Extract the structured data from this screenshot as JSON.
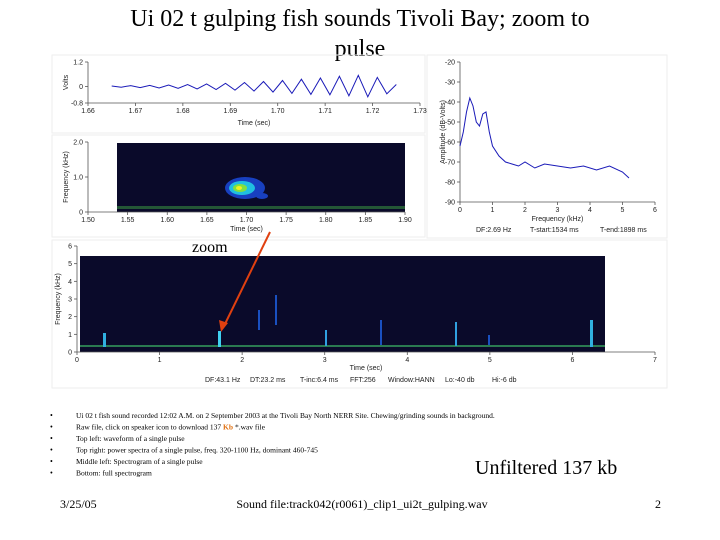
{
  "title": "Ui 02 t gulping fish sounds Tivoli Bay; zoom to pulse",
  "chart_data": [
    {
      "type": "line",
      "color": "#1a1ab8",
      "ylabel": "Volts",
      "xlabel": "Time (sec)",
      "xlim": [
        1.66,
        1.73
      ],
      "ylim": [
        -0.8,
        1.2
      ],
      "xticks": [
        1.66,
        1.67,
        1.68,
        1.69,
        {
          "value": 1.7,
          "label": "1.70"
        },
        1.71,
        1.72,
        1.73
      ],
      "yticks": [
        -0.8,
        0,
        1.2
      ],
      "x": [
        1.665,
        1.667,
        1.669,
        1.671,
        1.673,
        1.675,
        1.677,
        1.679,
        1.681,
        1.683,
        1.685,
        1.687,
        1.689,
        1.691,
        1.693,
        1.695,
        1.697,
        1.699,
        1.701,
        1.703,
        1.705,
        1.707,
        1.709,
        1.711,
        1.713,
        1.715,
        1.717,
        1.719,
        1.721,
        1.723,
        1.725
      ],
      "values": [
        0.03,
        -0.03,
        0.05,
        -0.05,
        0.06,
        -0.07,
        0.08,
        -0.09,
        0.1,
        -0.11,
        0.13,
        -0.14,
        0.16,
        -0.17,
        0.2,
        -0.22,
        0.25,
        -0.27,
        0.3,
        -0.33,
        0.36,
        -0.38,
        0.42,
        -0.4,
        0.5,
        -0.45,
        0.55,
        -0.5,
        0.45,
        -0.35,
        0.1
      ]
    },
    {
      "type": "line",
      "color": "#1a1ab8",
      "ylabel": "Amplitude (dB-Volts)",
      "xlabel": "Frequency (kHz)",
      "xlim": [
        0,
        6
      ],
      "ylim": [
        -90,
        -20
      ],
      "xticks": [
        0,
        1,
        2,
        3,
        4,
        5,
        6
      ],
      "yticks": [
        -90,
        -80,
        -70,
        -60,
        -50,
        -40,
        -30,
        -20
      ],
      "x": [
        0,
        0.1,
        0.2,
        0.3,
        0.4,
        0.5,
        0.6,
        0.7,
        0.8,
        0.9,
        1.0,
        1.2,
        1.4,
        1.6,
        1.8,
        2.0,
        2.3,
        2.6,
        3.0,
        3.4,
        3.8,
        4.2,
        4.6,
        5.0,
        5.2
      ],
      "values": [
        -62,
        -55,
        -45,
        -38,
        -42,
        -50,
        -52,
        -46,
        -45,
        -55,
        -62,
        -67,
        -70,
        -71,
        -72,
        -70,
        -73,
        -71,
        -72,
        -73,
        -72,
        -74,
        -72,
        -75,
        -78
      ],
      "footer": [
        "DF:2.69 Hz",
        "T-start:1534 ms",
        "T-end:1898 ms"
      ]
    },
    {
      "type": "spectrogram",
      "ylabel": "Frequency (kHz)",
      "xlabel": "Time (sec)",
      "xlim": [
        1.5,
        1.9
      ],
      "ylim": [
        0,
        2
      ],
      "xticks": [
        {
          "value": 1.5,
          "label": "1.50"
        },
        1.55,
        {
          "value": 1.6,
          "label": "1.60"
        },
        1.65,
        {
          "value": 1.7,
          "label": "1.70"
        },
        1.75,
        {
          "value": 1.8,
          "label": "1.80"
        },
        1.85,
        {
          "value": 1.9,
          "label": "1.90"
        }
      ],
      "yticks": [
        0,
        {
          "value": 1,
          "label": "1.0"
        },
        {
          "value": 2,
          "label": "2.0"
        }
      ]
    },
    {
      "type": "spectrogram",
      "ylabel": "Frequency (kHz)",
      "xlabel": "Time (sec)",
      "xlim": [
        0,
        7
      ],
      "ylim": [
        0,
        6
      ],
      "xticks": [
        0,
        1,
        2,
        3,
        4,
        5,
        6,
        7
      ],
      "yticks": [
        0,
        1,
        2,
        3,
        4,
        5,
        6
      ],
      "footer": [
        "DF:43.1 Hz",
        "DT:23.2 ms",
        "T-inc:6.4 ms",
        "FFT:256",
        "Window:HANN",
        "Lo:-40 db",
        "Hi:-6 db"
      ]
    }
  ],
  "annotation": "zoom",
  "bullets": [
    [
      "Ui 02 t fish sound recorded  12:02 A.M. on 2 September 2003 at the Tivoli Bay North NERR Site. Chewing/grinding sounds in background."
    ],
    [
      "Raw file, click on speaker icon to download 137 ",
      "Kb",
      " *.wav file"
    ],
    [
      "Top left: waveform of a single pulse"
    ],
    [
      "Top right: power spectra of a single pulse, freq. 320-1100 Hz, dominant 460-745"
    ],
    [
      "Middle left: Spectrogram of a single pulse"
    ],
    [
      "Bottom: full spectrogram"
    ]
  ],
  "side_note": "Unfiltered 137 kb",
  "footer": {
    "date": "3/25/05",
    "center": "Sound file:track042(r0061)_clip1_ui2t_gulping.wav",
    "page": "2"
  }
}
